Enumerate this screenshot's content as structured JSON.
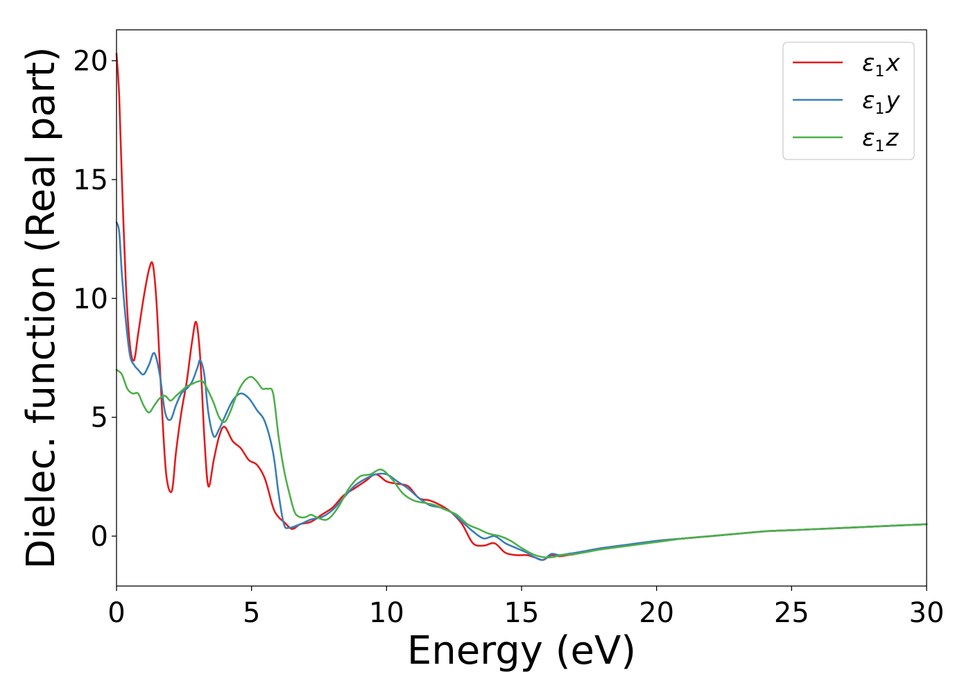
{
  "chart_data": {
    "type": "line",
    "xlabel": "Energy (eV)",
    "ylabel": "Dielec. function (Real part)",
    "xlim": [
      0,
      30
    ],
    "ylim": [
      -2.1,
      21.3
    ],
    "xticks": [
      0,
      5,
      10,
      15,
      20,
      25,
      30
    ],
    "yticks": [
      0,
      5,
      10,
      15,
      20
    ],
    "grid": false,
    "legend_position": "top-right",
    "series": [
      {
        "name": "ε1x",
        "legend": {
          "base": "ε",
          "sub": "1",
          "var": "x"
        },
        "color": "#e41a1c",
        "x": [
          0,
          0.1,
          0.2,
          0.35,
          0.5,
          0.65,
          0.8,
          1.0,
          1.2,
          1.35,
          1.5,
          1.7,
          1.85,
          2.05,
          2.2,
          2.4,
          2.6,
          2.8,
          2.95,
          3.1,
          3.25,
          3.4,
          3.6,
          3.8,
          4.0,
          4.3,
          4.6,
          4.9,
          5.2,
          5.5,
          5.8,
          6.0,
          6.2,
          6.5,
          6.8,
          7.2,
          7.6,
          8.0,
          8.4,
          8.8,
          9.2,
          9.6,
          10.0,
          10.4,
          10.8,
          11.2,
          11.6,
          12.0,
          12.4,
          12.8,
          13.2,
          13.6,
          14.0,
          14.4,
          14.8,
          15.2,
          15.5,
          15.8,
          16.1,
          16.4,
          16.7,
          17.0,
          17.5,
          18.0,
          19.0,
          20.0,
          21.0,
          22.0,
          23.0,
          24.0,
          25.0,
          26.0,
          27.0,
          28.0,
          29.0,
          30.0
        ],
        "y": [
          20.3,
          18.5,
          15.0,
          10.5,
          8.0,
          7.4,
          8.5,
          10.0,
          11.2,
          11.4,
          9.5,
          5.0,
          2.5,
          1.9,
          3.5,
          5.2,
          6.5,
          8.2,
          9.0,
          7.5,
          4.2,
          2.1,
          3.2,
          4.2,
          4.6,
          4.0,
          3.7,
          3.2,
          3.0,
          2.4,
          1.2,
          0.8,
          0.6,
          0.3,
          0.5,
          0.6,
          0.9,
          1.2,
          1.7,
          2.0,
          2.3,
          2.6,
          2.3,
          2.2,
          2.1,
          1.6,
          1.5,
          1.3,
          1.0,
          0.5,
          -0.3,
          -0.4,
          -0.3,
          -0.7,
          -0.8,
          -0.8,
          -0.9,
          -1.0,
          -0.8,
          -0.85,
          -0.8,
          -0.75,
          -0.6,
          -0.5,
          -0.35,
          -0.2,
          -0.1,
          0.0,
          0.1,
          0.2,
          0.25,
          0.3,
          0.35,
          0.4,
          0.45,
          0.5
        ]
      },
      {
        "name": "ε1y",
        "legend": {
          "base": "ε",
          "sub": "1",
          "var": "y"
        },
        "color": "#377eb8",
        "x": [
          0,
          0.1,
          0.2,
          0.35,
          0.5,
          0.65,
          0.8,
          1.0,
          1.2,
          1.4,
          1.6,
          1.8,
          2.0,
          2.2,
          2.4,
          2.6,
          2.8,
          3.0,
          3.1,
          3.25,
          3.4,
          3.6,
          3.8,
          4.0,
          4.3,
          4.6,
          4.9,
          5.2,
          5.5,
          5.8,
          6.0,
          6.2,
          6.4,
          6.8,
          7.2,
          7.6,
          8.0,
          8.4,
          8.8,
          9.2,
          9.6,
          10.0,
          10.4,
          10.8,
          11.2,
          11.6,
          12.0,
          12.4,
          12.8,
          13.2,
          13.6,
          14.0,
          14.4,
          14.8,
          15.2,
          15.5,
          15.8,
          16.1,
          16.4,
          16.7,
          17.0,
          17.5,
          18.0,
          19.0,
          20.0,
          21.0,
          22.0,
          23.0,
          24.0,
          25.0,
          26.0,
          27.0,
          28.0,
          29.0,
          30.0
        ],
        "y": [
          13.2,
          12.8,
          11.0,
          9.0,
          7.6,
          7.2,
          7.0,
          6.8,
          7.2,
          7.7,
          6.8,
          5.2,
          4.9,
          5.5,
          6.0,
          6.2,
          6.5,
          7.1,
          7.4,
          6.8,
          5.2,
          4.2,
          4.5,
          5.0,
          5.7,
          6.0,
          5.8,
          5.3,
          4.8,
          3.5,
          1.8,
          0.5,
          0.35,
          0.5,
          0.7,
          0.8,
          1.1,
          1.6,
          2.1,
          2.4,
          2.6,
          2.6,
          2.3,
          2.0,
          1.6,
          1.3,
          1.2,
          1.0,
          0.6,
          0.2,
          -0.1,
          0.0,
          -0.3,
          -0.5,
          -0.7,
          -0.9,
          -1.0,
          -0.75,
          -0.8,
          -0.75,
          -0.7,
          -0.6,
          -0.5,
          -0.35,
          -0.2,
          -0.1,
          0.0,
          0.1,
          0.2,
          0.25,
          0.3,
          0.35,
          0.4,
          0.45,
          0.5
        ]
      },
      {
        "name": "ε1z",
        "legend": {
          "base": "ε",
          "sub": "1",
          "var": "z"
        },
        "color": "#4daf4a",
        "x": [
          0,
          0.2,
          0.4,
          0.6,
          0.8,
          1.0,
          1.2,
          1.4,
          1.6,
          1.8,
          2.0,
          2.2,
          2.4,
          2.6,
          2.8,
          3.0,
          3.2,
          3.4,
          3.6,
          3.8,
          4.0,
          4.2,
          4.4,
          4.6,
          4.8,
          5.0,
          5.2,
          5.4,
          5.6,
          5.8,
          6.0,
          6.2,
          6.4,
          6.6,
          6.8,
          7.0,
          7.2,
          7.4,
          7.8,
          8.2,
          8.6,
          9.0,
          9.4,
          9.8,
          10.2,
          10.6,
          11.0,
          11.4,
          11.8,
          12.2,
          12.6,
          13.0,
          13.4,
          13.8,
          14.2,
          14.6,
          15.0,
          15.5,
          16.0,
          16.5,
          17.0,
          17.5,
          18.0,
          19.0,
          20.0,
          21.0,
          22.0,
          23.0,
          24.0,
          25.0,
          26.0,
          27.0,
          28.0,
          29.0,
          30.0
        ],
        "y": [
          7.0,
          6.8,
          6.2,
          6.0,
          6.0,
          5.5,
          5.2,
          5.5,
          5.8,
          5.9,
          5.7,
          5.9,
          6.1,
          6.3,
          6.4,
          6.5,
          6.5,
          6.1,
          5.6,
          5.0,
          4.8,
          5.2,
          5.8,
          6.3,
          6.6,
          6.7,
          6.5,
          6.2,
          6.2,
          6.0,
          4.2,
          2.8,
          1.8,
          1.0,
          0.8,
          0.8,
          0.9,
          0.8,
          0.7,
          1.2,
          2.0,
          2.5,
          2.6,
          2.8,
          2.4,
          1.8,
          1.5,
          1.4,
          1.3,
          1.1,
          0.9,
          0.5,
          0.3,
          0.1,
          0.0,
          -0.2,
          -0.5,
          -0.8,
          -0.9,
          -0.8,
          -0.75,
          -0.65,
          -0.55,
          -0.4,
          -0.25,
          -0.1,
          0.0,
          0.1,
          0.2,
          0.25,
          0.3,
          0.35,
          0.4,
          0.45,
          0.5
        ]
      }
    ]
  }
}
